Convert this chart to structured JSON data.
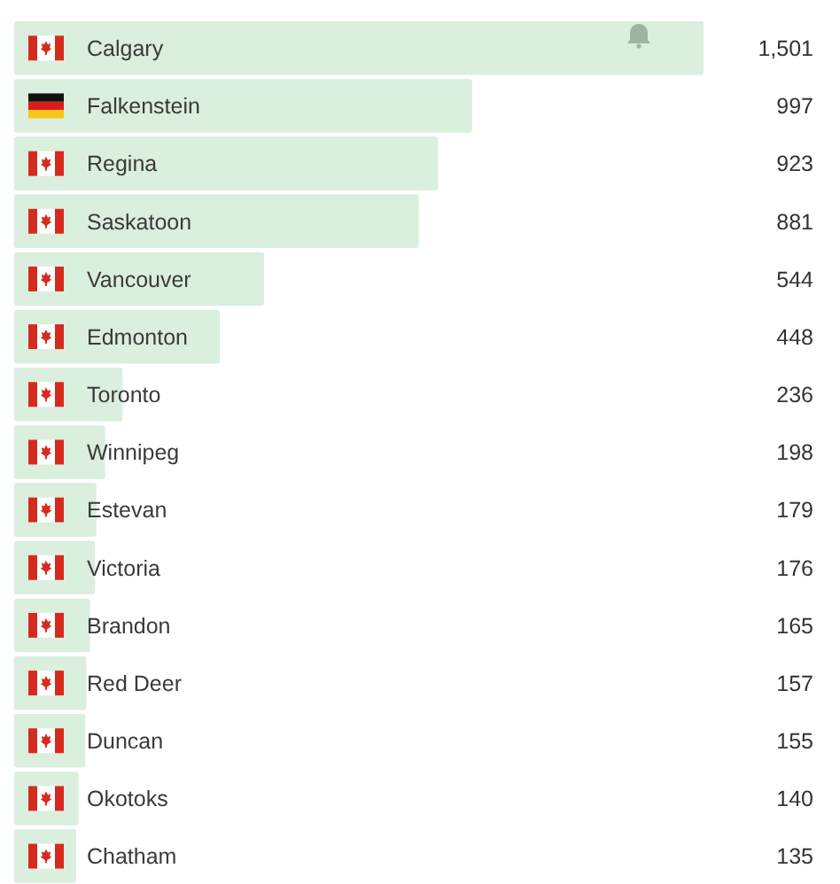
{
  "chart_data": {
    "type": "bar",
    "orientation": "horizontal",
    "categories": [
      "Calgary",
      "Falkenstein",
      "Regina",
      "Saskatoon",
      "Vancouver",
      "Edmonton",
      "Toronto",
      "Winnipeg",
      "Estevan",
      "Victoria",
      "Brandon",
      "Red Deer",
      "Duncan",
      "Okotoks",
      "Chatham"
    ],
    "values": [
      1501,
      997,
      923,
      881,
      544,
      448,
      236,
      198,
      179,
      176,
      165,
      157,
      155,
      140,
      135
    ],
    "value_labels": [
      "1,501",
      "997",
      "923",
      "881",
      "544",
      "448",
      "236",
      "198",
      "179",
      "176",
      "165",
      "157",
      "155",
      "140",
      "135"
    ],
    "color": "#daefdd"
  }
}
